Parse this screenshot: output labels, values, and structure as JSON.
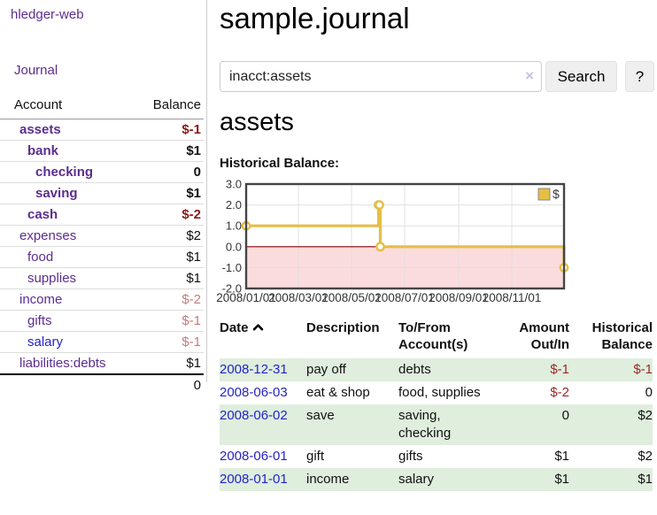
{
  "colors": {
    "purple": "#5b2d90",
    "link_blue": "#2323cc",
    "neg_dark": "#8d1a1a",
    "neg_soft": "#c47c7c",
    "row_green": "#dfeedd",
    "chart_line_gold": "#e5be45",
    "chart_negative_fill": "#fbdcdc",
    "chart_zero_line": "#8b0000"
  },
  "brand": "hledger-web",
  "nav": {
    "journal": "Journal"
  },
  "sidebar_table": {
    "headers": {
      "account": "Account",
      "balance": "Balance"
    },
    "rows": [
      {
        "name": "assets",
        "depth": 1,
        "bold": true,
        "balance": "$-1",
        "balance_class": "neg-strong"
      },
      {
        "name": "bank",
        "depth": 2,
        "bold": true,
        "balance": "$1",
        "balance_class": ""
      },
      {
        "name": "checking",
        "depth": 3,
        "bold": true,
        "balance": "0",
        "balance_class": ""
      },
      {
        "name": "saving",
        "depth": 3,
        "bold": true,
        "balance": "$1",
        "balance_class": ""
      },
      {
        "name": "cash",
        "depth": 2,
        "bold": true,
        "balance": "$-2",
        "balance_class": "neg-strong"
      },
      {
        "name": "expenses",
        "depth": 1,
        "bold": false,
        "balance": "$2",
        "balance_class": ""
      },
      {
        "name": "food",
        "depth": 2,
        "bold": false,
        "balance": "$1",
        "balance_class": ""
      },
      {
        "name": "supplies",
        "depth": 2,
        "bold": false,
        "balance": "$1",
        "balance_class": ""
      },
      {
        "name": "income",
        "depth": 1,
        "bold": false,
        "balance": "$-2",
        "balance_class": "neg-soft"
      },
      {
        "name": "gifts",
        "depth": 2,
        "bold": false,
        "balance": "$-1",
        "balance_class": "neg-soft"
      },
      {
        "name": "salary",
        "depth": 2,
        "bold": false,
        "balance": "$-1",
        "balance_class": "neg-soft",
        "link_color": "blue"
      },
      {
        "name": "liabilities:debts",
        "depth": 1,
        "bold": false,
        "balance": "$1",
        "balance_class": ""
      }
    ],
    "total": "0"
  },
  "header": {
    "title": "sample.journal"
  },
  "search": {
    "value": "inacct:assets",
    "clear_icon": "×",
    "search_button": "Search",
    "help_button": "?"
  },
  "account_page": {
    "heading": "assets",
    "chart_title": "Historical Balance:"
  },
  "chart_data": {
    "type": "line",
    "style": "step",
    "title": "Historical Balance",
    "x_range": [
      "2008-01-01",
      "2008-12-31"
    ],
    "y_range": [
      -2,
      3
    ],
    "series": [
      {
        "name": "$",
        "color": "#e5be45",
        "points": [
          [
            "2008-01-01",
            1
          ],
          [
            "2008-06-01",
            2
          ],
          [
            "2008-06-02",
            2
          ],
          [
            "2008-06-03",
            0
          ],
          [
            "2008-12-31",
            -1
          ]
        ]
      }
    ],
    "y_ticks": [
      {
        "v": 3,
        "label": "3.0"
      },
      {
        "v": 2,
        "label": "2.0"
      },
      {
        "v": 1,
        "label": "1.0"
      },
      {
        "v": 0,
        "label": "0.0"
      },
      {
        "v": -1,
        "label": "-1.0"
      },
      {
        "v": -2,
        "label": "-2.0"
      }
    ],
    "x_ticks": [
      {
        "d": "2008-01-01",
        "label": "2008/01/01"
      },
      {
        "d": "2008-03-01",
        "label": "2008/03/01"
      },
      {
        "d": "2008-05-01",
        "label": "2008/05/01"
      },
      {
        "d": "2008-07-01",
        "label": "2008/07/01"
      },
      {
        "d": "2008-09-01",
        "label": "2008/09/01"
      },
      {
        "d": "2008-11-01",
        "label": "2008/11/01"
      }
    ],
    "grid": true,
    "legend": {
      "position": "top-right",
      "label": "$",
      "swatch_color": "#e5be45"
    },
    "negative_fill": "#fbdcdc",
    "zero_line_color": "#8b0000"
  },
  "transactions": {
    "headers": {
      "date": "Date",
      "description": "Description",
      "tofrom_line1": "To/From",
      "tofrom_line2": "Account(s)",
      "amount_line1": "Amount",
      "amount_line2": "Out/In",
      "balance_line1": "Historical",
      "balance_line2": "Balance"
    },
    "rows": [
      {
        "date": "2008-12-31",
        "description": "pay off",
        "accounts": "debts",
        "amount": "$-1",
        "amount_neg": true,
        "balance": "$-1",
        "balance_neg": true
      },
      {
        "date": "2008-06-03",
        "description": "eat & shop",
        "accounts": "food, supplies",
        "amount": "$-2",
        "amount_neg": true,
        "balance": "0",
        "balance_neg": false
      },
      {
        "date": "2008-06-02",
        "description": "save",
        "accounts": "saving, checking",
        "amount": "0",
        "amount_neg": false,
        "balance": "$2",
        "balance_neg": false
      },
      {
        "date": "2008-06-01",
        "description": "gift",
        "accounts": "gifts",
        "amount": "$1",
        "amount_neg": false,
        "balance": "$2",
        "balance_neg": false
      },
      {
        "date": "2008-01-01",
        "description": "income",
        "accounts": "salary",
        "amount": "$1",
        "amount_neg": false,
        "balance": "$1",
        "balance_neg": false
      }
    ]
  }
}
